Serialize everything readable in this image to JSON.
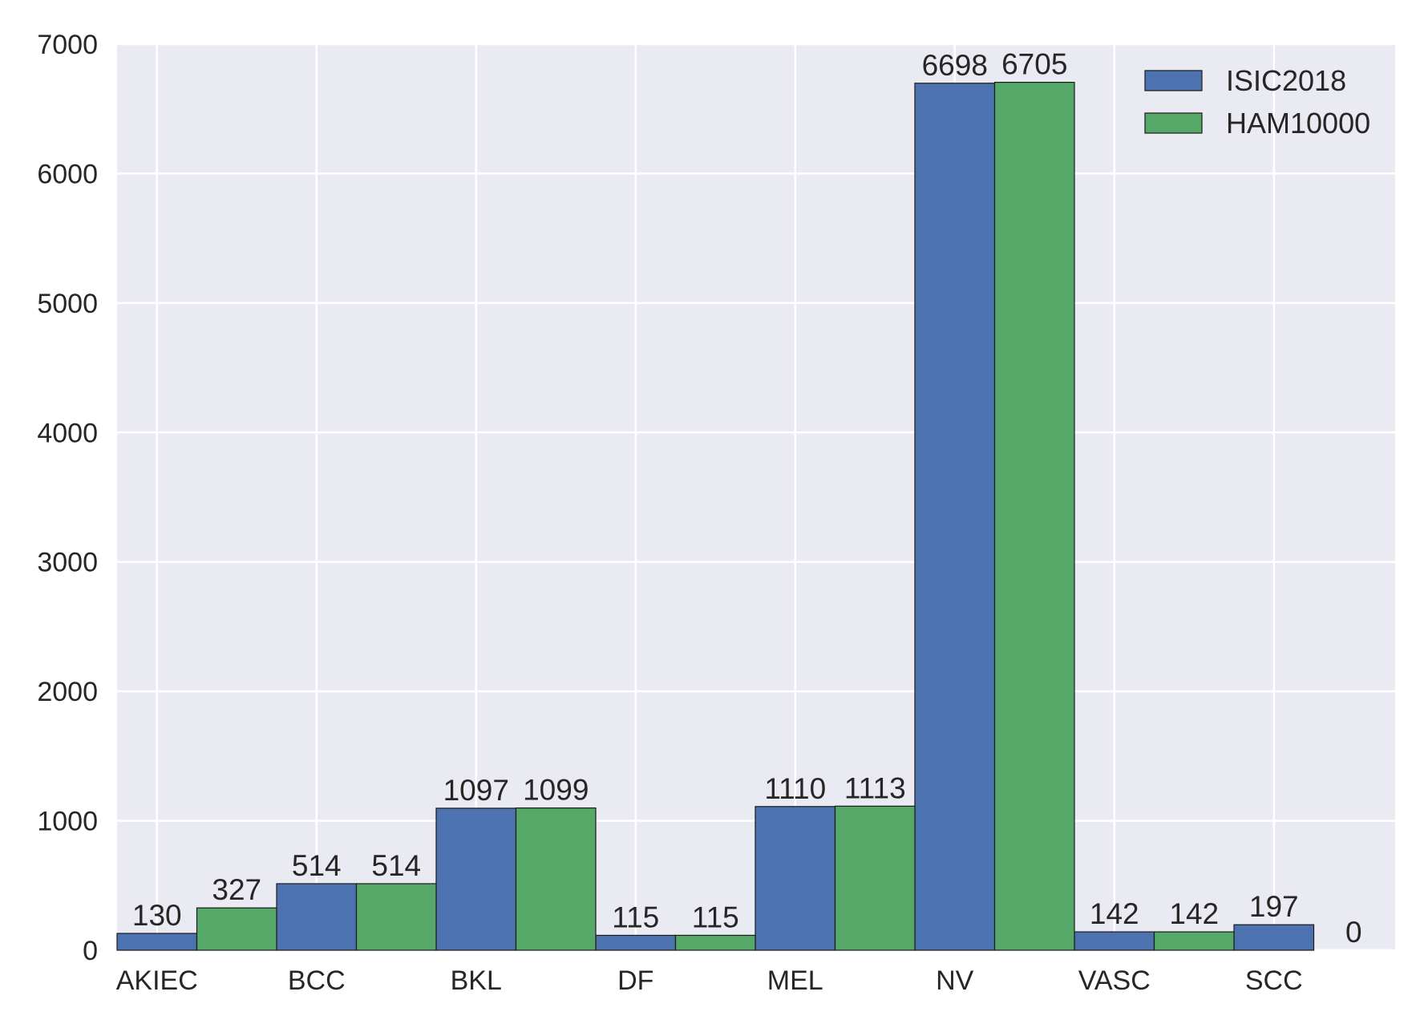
{
  "chart_data": {
    "type": "bar",
    "title": "",
    "xlabel": "",
    "ylabel": "",
    "categories": [
      "AKIEC",
      "BCC",
      "BKL",
      "DF",
      "MEL",
      "NV",
      "VASC",
      "SCC"
    ],
    "series": [
      {
        "name": "ISIC2018",
        "color": "#4c72b0",
        "values": [
          130,
          514,
          1097,
          115,
          1110,
          6698,
          142,
          197
        ]
      },
      {
        "name": "HAM10000",
        "color": "#55a868",
        "values": [
          327,
          514,
          1099,
          115,
          1113,
          6705,
          142,
          0
        ]
      }
    ],
    "ylim": [
      0,
      7000
    ],
    "yticks": [
      "0",
      "1000",
      "2000",
      "3000",
      "4000",
      "5000",
      "6000",
      "7000"
    ],
    "grid": true,
    "legend_position": "top-right",
    "background_color": "#eaeaf2",
    "grid_color": "#ffffff"
  }
}
